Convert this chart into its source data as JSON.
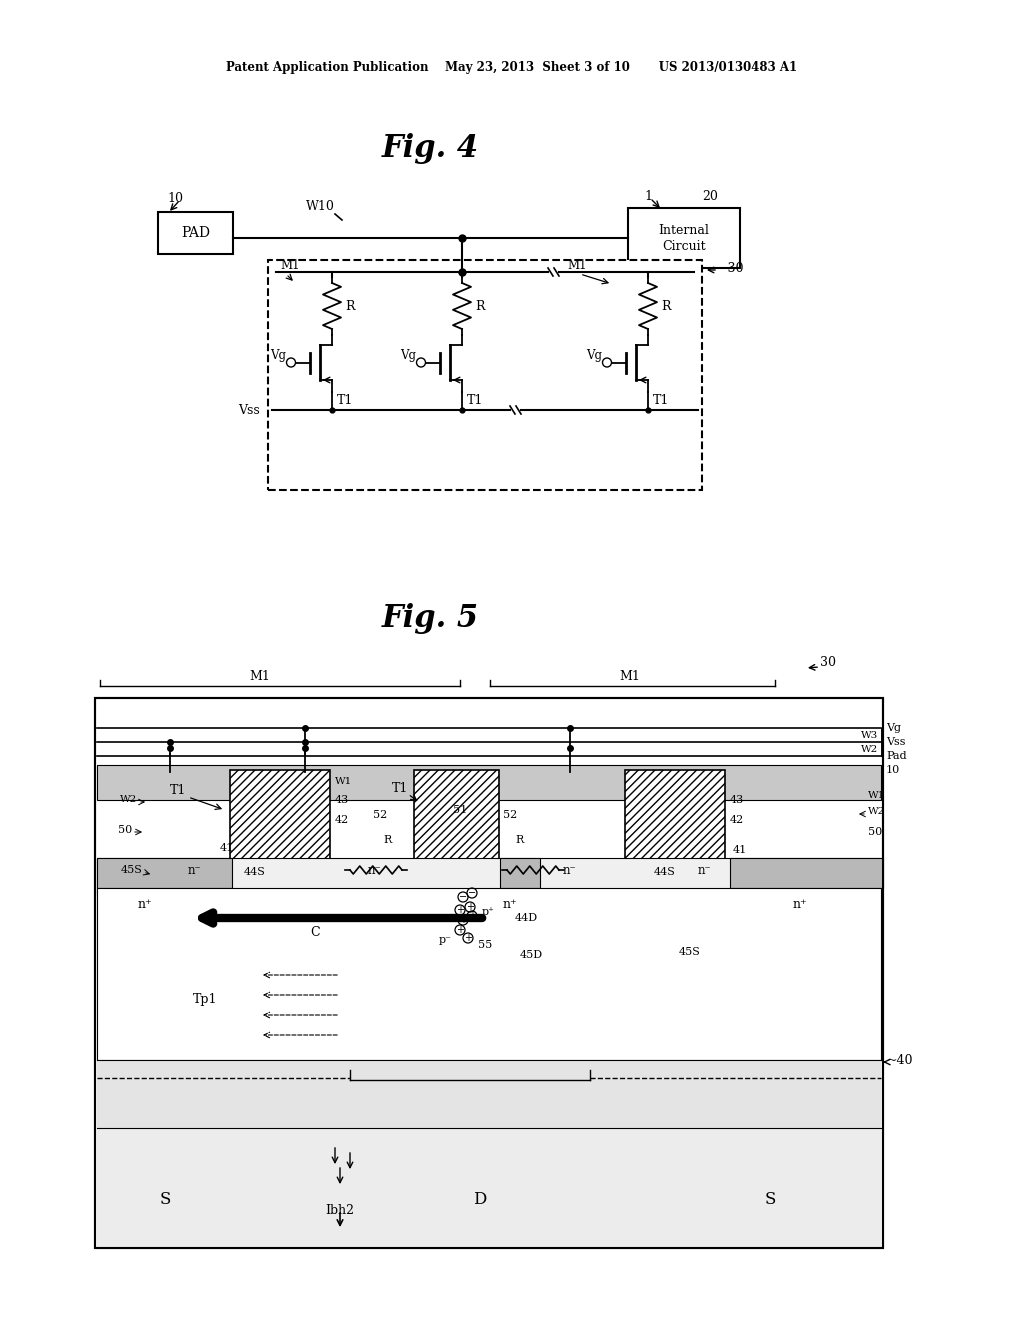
{
  "bg_color": "#ffffff",
  "text_color": "#000000",
  "header_text": "Patent Application Publication    May 23, 2013  Sheet 3 of 10       US 2013/0130483 A1",
  "fig4_title": "Fig. 4",
  "fig5_title": "Fig. 5"
}
